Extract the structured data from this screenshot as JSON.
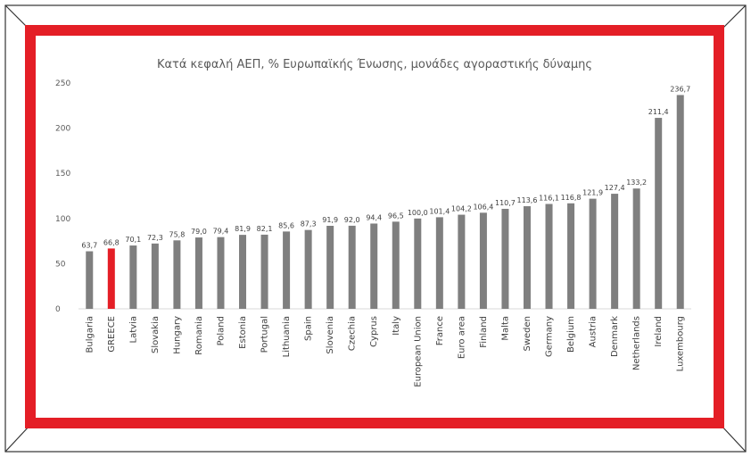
{
  "chart_data": {
    "type": "bar",
    "title": "Κατά κεφαλή ΑΕΠ, % Ευρωπαϊκής Ένωσης, μονάδες αγοραστικής δύναμης",
    "xlabel": "",
    "ylabel": "",
    "ylim": [
      0,
      250
    ],
    "yticks": [
      0,
      50,
      100,
      150,
      200,
      250
    ],
    "grid": false,
    "legend": "none",
    "categories": [
      "Bulgaria",
      "GREECE",
      "Latvia",
      "Slovakia",
      "Hungary",
      "Romania",
      "Poland",
      "Estonia",
      "Portugal",
      "Lithuania",
      "Spain",
      "Slovenia",
      "Czechia",
      "Cyprus",
      "Italy",
      "European Union",
      "France",
      "Euro area",
      "Finland",
      "Malta",
      "Sweden",
      "Germany",
      "Belgium",
      "Austria",
      "Denmark",
      "Netherlands",
      "Ireland",
      "Luxembourg"
    ],
    "values": [
      63.7,
      66.8,
      70.1,
      72.3,
      75.8,
      79.0,
      79.4,
      81.9,
      82.1,
      85.6,
      87.3,
      91.9,
      92.0,
      94.4,
      96.5,
      100.0,
      101.4,
      104.2,
      106.4,
      110.7,
      113.6,
      116.1,
      116.8,
      121.9,
      127.4,
      133.2,
      211.4,
      236.7
    ],
    "value_labels": [
      "63,7",
      "66,8",
      "70,1",
      "72,3",
      "75,8",
      "79,0",
      "79,4",
      "81,9",
      "82,1",
      "85,6",
      "87,3",
      "91,9",
      "92,0",
      "94,4",
      "96,5",
      "100,0",
      "101,4",
      "104,2",
      "106,4",
      "110,7",
      "113,6",
      "116,1",
      "116,8",
      "121,9",
      "127,4",
      "133,2",
      "211,4",
      "236,7"
    ],
    "colors": {
      "default_bar": "#7f7f7f",
      "highlight_bar": "#e41e26",
      "frame": "#e41e26"
    },
    "highlight": "GREECE"
  }
}
